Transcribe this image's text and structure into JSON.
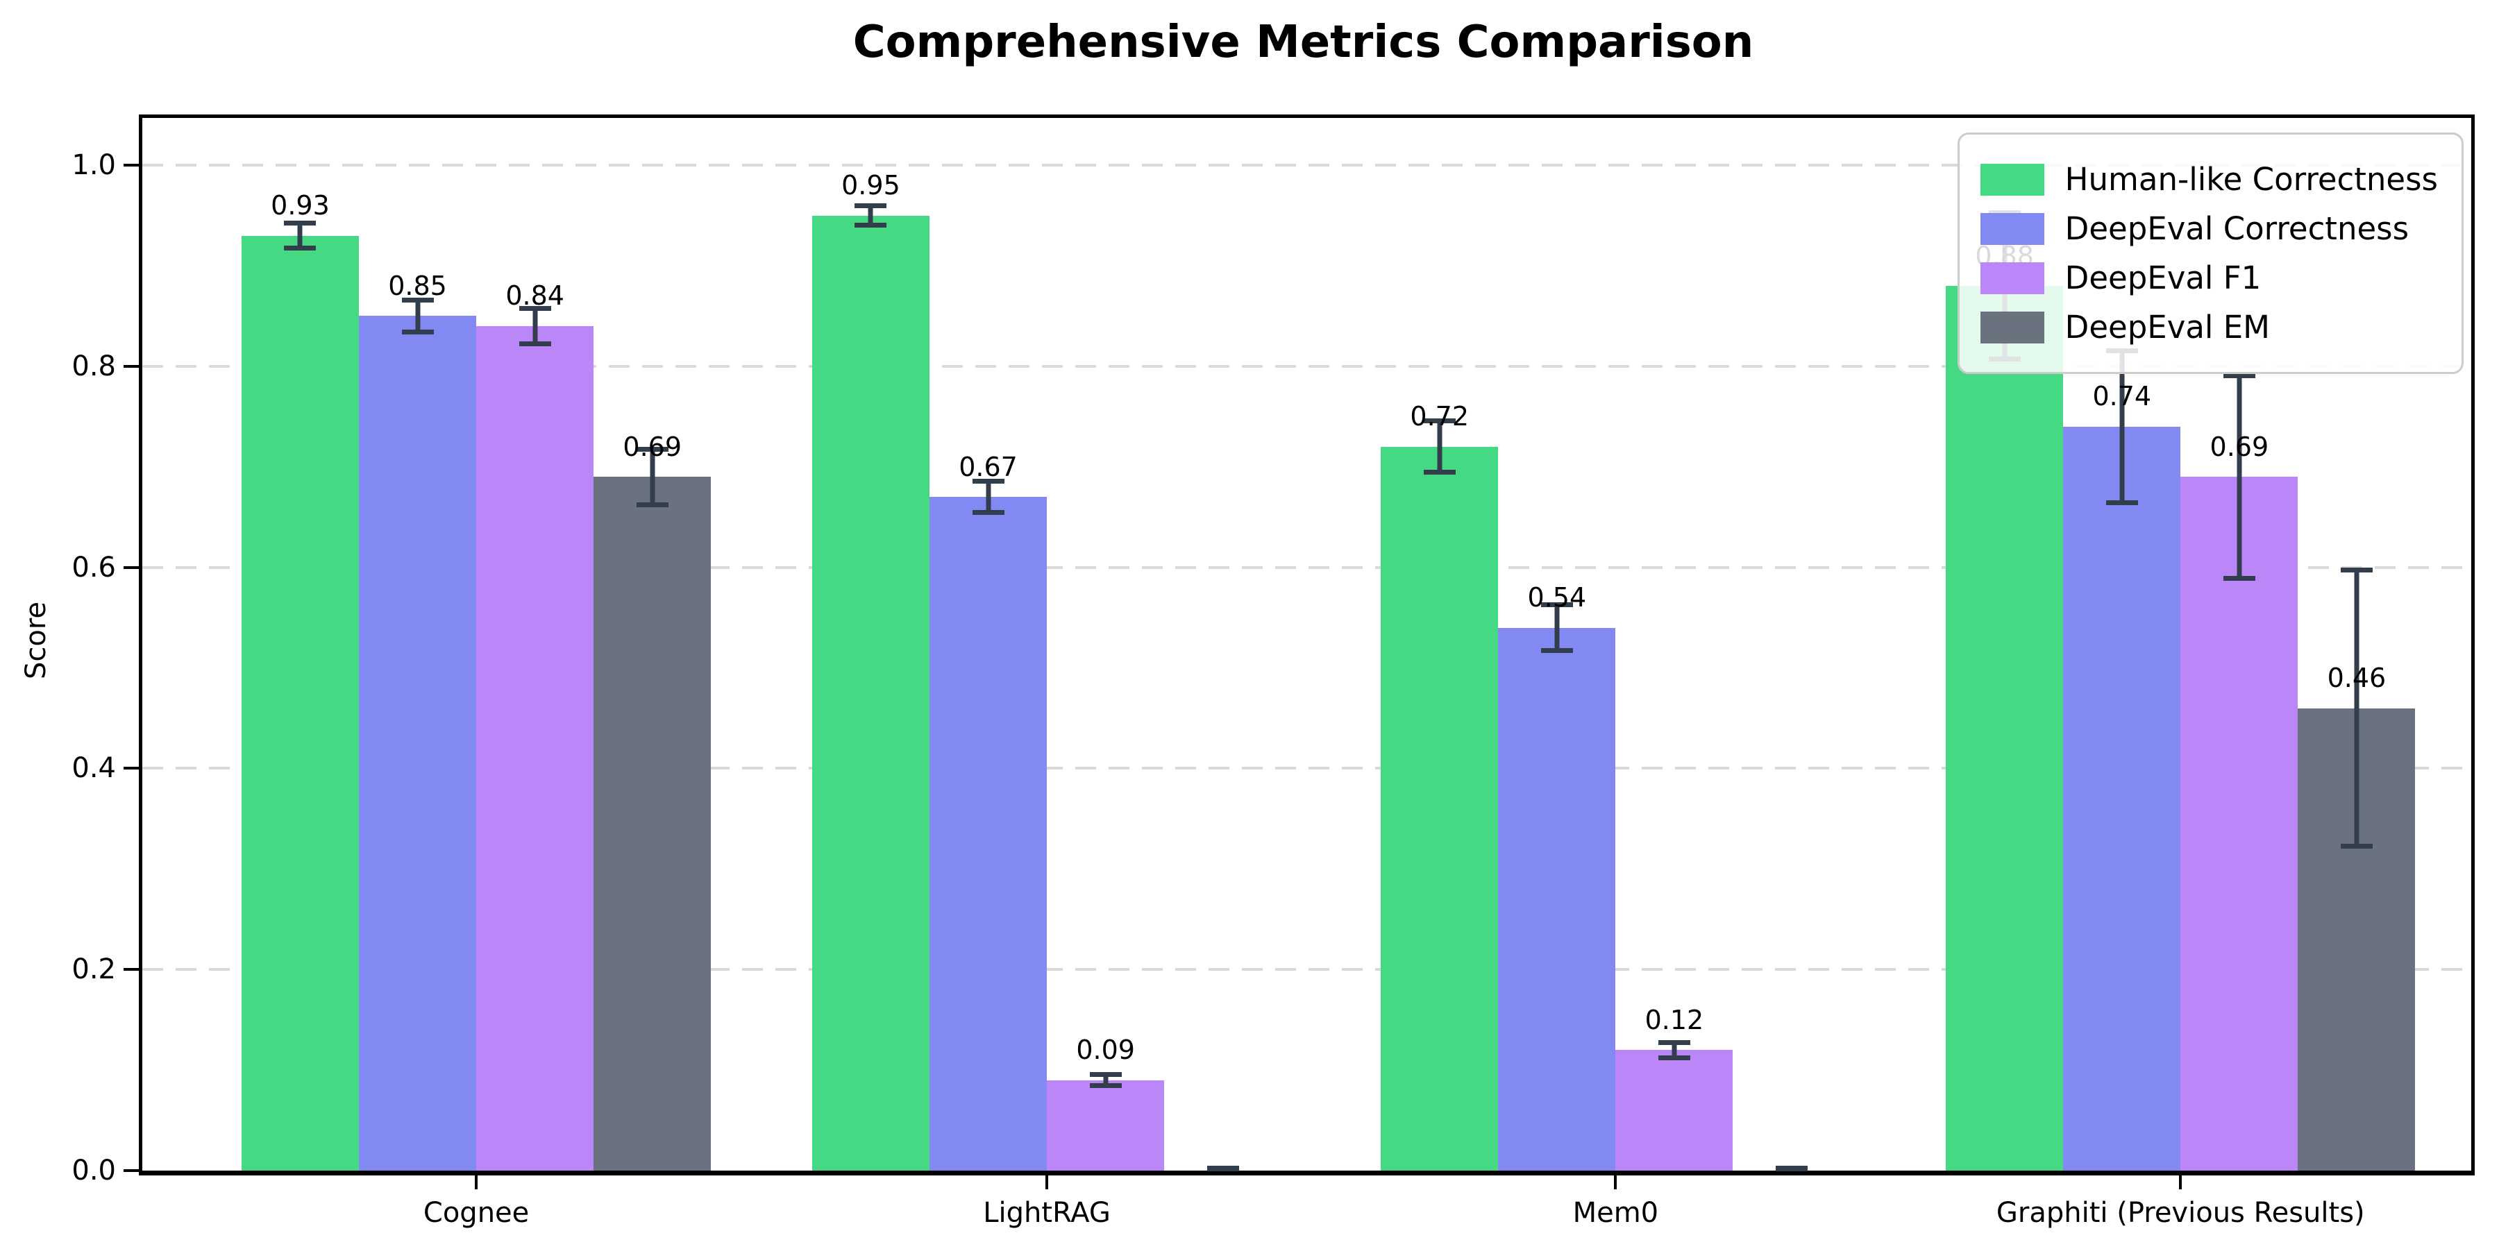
{
  "chart_data": {
    "type": "bar",
    "title": "Comprehensive Metrics Comparison",
    "ylabel": "Score",
    "xlabel": "",
    "ylim": [
      0,
      1.047
    ],
    "yticks": [
      0.0,
      0.2,
      0.4,
      0.6,
      0.8,
      1.0
    ],
    "ytick_labels": [
      "0.0",
      "0.2",
      "0.4",
      "0.6",
      "0.8",
      "1.0"
    ],
    "grid": "horizontal dashed gridlines at y ticks",
    "gridline_color": "#d9d9d9",
    "legend_position": "upper right",
    "error_bar_color": "#333e4c",
    "label_offset": 0.03,
    "bar_width_frac": 0.0504,
    "group_centers": [
      0.1434,
      0.3884,
      0.6326,
      0.8752
    ],
    "categories": [
      "Cognee",
      "LightRAG",
      "Mem0",
      "Graphiti (Previous Results)"
    ],
    "series": [
      {
        "name": "Human-like Correctness",
        "color": "#45d983",
        "values": [
          0.93,
          0.95,
          0.72,
          0.88
        ],
        "errors": [
          0.015,
          0.012,
          0.028,
          0.075
        ],
        "labels": [
          "0.93",
          "0.95",
          "0.72",
          "0.88"
        ]
      },
      {
        "name": "DeepEval Correctness",
        "color": "#8289f2",
        "values": [
          0.85,
          0.67,
          0.54,
          0.74
        ],
        "errors": [
          0.018,
          0.018,
          0.025,
          0.078
        ],
        "labels": [
          "0.85",
          "0.67",
          "0.54",
          "0.74"
        ]
      },
      {
        "name": "DeepEval F1",
        "color": "#bb86f7",
        "values": [
          0.84,
          0.09,
          0.12,
          0.69
        ],
        "errors": [
          0.02,
          0.008,
          0.01,
          0.103
        ],
        "labels": [
          "0.84",
          "0.09",
          "0.12",
          "0.69"
        ]
      },
      {
        "name": "DeepEval EM",
        "color": "#6a7280",
        "values": [
          0.69,
          0.0,
          0.0,
          0.46
        ],
        "errors": [
          0.03,
          0.004,
          0.004,
          0.14
        ],
        "labels": [
          "0.69",
          "",
          "",
          "0.46"
        ]
      }
    ]
  }
}
